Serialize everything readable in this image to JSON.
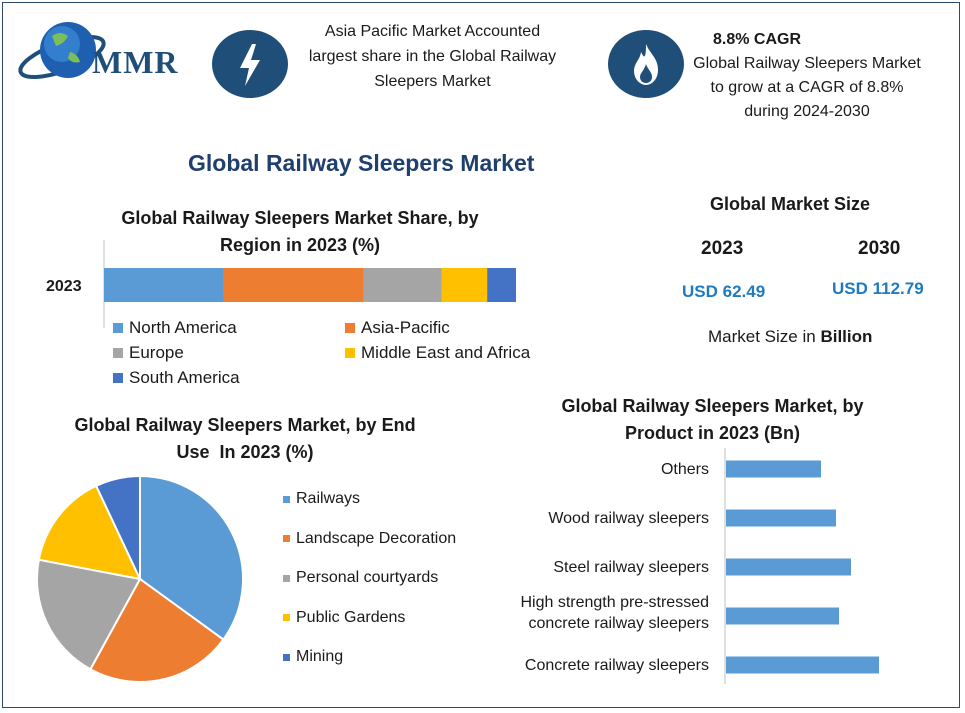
{
  "header": {
    "logo_text": "MMR",
    "info_1": "Asia Pacific Market Accounted largest share in the Global Railway Sleepers Market",
    "cagr_title": "8.8% CAGR",
    "cagr_text": "Global Railway Sleepers Market to grow at a CAGR of 8.8% during 2024-2030"
  },
  "main_title": "Global Railway Sleepers Market",
  "market_size": {
    "title": "Global Market Size",
    "year_1": "2023",
    "year_2": "2030",
    "value_1": "USD 62.49",
    "value_2": "USD 112.79",
    "note_prefix": "Market Size in ",
    "note_bold": "Billion"
  },
  "colors": {
    "blue": "#5b9bd5",
    "orange": "#ed7d31",
    "gray": "#a5a5a5",
    "yellow": "#ffc000",
    "dark_blue": "#4472c4",
    "navy": "#1f4e79"
  },
  "chart_data": [
    {
      "type": "bar",
      "orientation": "horizontal-stacked",
      "title": "Global Railway Sleepers Market Share, by Region in 2023 (%)",
      "categories": [
        "2023"
      ],
      "series": [
        {
          "name": "North America",
          "values": [
            29
          ],
          "color": "#5b9bd5"
        },
        {
          "name": "Asia-Pacific",
          "values": [
            34
          ],
          "color": "#ed7d31"
        },
        {
          "name": "Europe",
          "values": [
            19
          ],
          "color": "#a5a5a5"
        },
        {
          "name": "Middle East and Africa",
          "values": [
            11
          ],
          "color": "#ffc000"
        },
        {
          "name": "South America",
          "values": [
            7
          ],
          "color": "#4472c4"
        }
      ],
      "legend_position": "bottom"
    },
    {
      "type": "pie",
      "title": "Global Railway Sleepers Market, by End Use  In 2023 (%)",
      "categories": [
        "Railways",
        "Landscape Decoration",
        "Personal courtyards",
        "Public Gardens",
        "Mining"
      ],
      "values": [
        35,
        23,
        20,
        15,
        7
      ],
      "colors": [
        "#5b9bd5",
        "#ed7d31",
        "#a5a5a5",
        "#ffc000",
        "#4472c4"
      ],
      "legend_position": "right"
    },
    {
      "type": "bar",
      "orientation": "horizontal",
      "title": "Global Railway Sleepers Market, by Product in 2023 (Bn)",
      "categories": [
        "Others",
        "Wood railway sleepers",
        "Steel railway sleepers",
        "High strength pre-stressed concrete railway sleepers",
        "Concrete railway sleepers"
      ],
      "category_lines": [
        [
          "Others"
        ],
        [
          "Wood railway sleepers"
        ],
        [
          "Steel railway sleepers"
        ],
        [
          "High strength pre-stressed",
          "concrete railway sleepers"
        ],
        [
          "Concrete railway sleepers"
        ]
      ],
      "values": [
        9.5,
        11,
        12.5,
        11.3,
        15.3
      ],
      "color": "#5b9bd5"
    }
  ]
}
